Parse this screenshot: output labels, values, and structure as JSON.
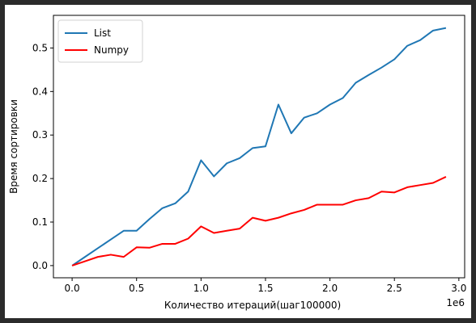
{
  "chart_data": {
    "type": "line",
    "xlabel": "Количество итераций(шаг100000)",
    "ylabel": "Время сортировки",
    "x_offset_text": "1e6",
    "xlim": [
      -0.145,
      3.045
    ],
    "ylim": [
      -0.028,
      0.575
    ],
    "xticks": [
      0.0,
      0.5,
      1.0,
      1.5,
      2.0,
      2.5,
      3.0
    ],
    "xtick_labels": [
      "0.0",
      "0.5",
      "1.0",
      "1.5",
      "2.0",
      "2.5",
      "3.0"
    ],
    "yticks": [
      0.0,
      0.1,
      0.2,
      0.3,
      0.4,
      0.5
    ],
    "ytick_labels": [
      "0.0",
      "0.1",
      "0.2",
      "0.3",
      "0.4",
      "0.5"
    ],
    "grid": false,
    "legend_position": "top-left",
    "x": [
      0.0,
      0.1,
      0.2,
      0.3,
      0.4,
      0.5,
      0.6,
      0.7,
      0.8,
      0.9,
      1.0,
      1.1,
      1.2,
      1.3,
      1.4,
      1.5,
      1.6,
      1.7,
      1.8,
      1.9,
      2.0,
      2.1,
      2.2,
      2.3,
      2.4,
      2.5,
      2.6,
      2.7,
      2.8,
      2.9
    ],
    "series": [
      {
        "name": "List",
        "color": "#1f77b4",
        "values": [
          0.0,
          0.02,
          0.04,
          0.06,
          0.08,
          0.08,
          0.107,
          0.132,
          0.143,
          0.17,
          0.242,
          0.205,
          0.235,
          0.247,
          0.27,
          0.274,
          0.37,
          0.304,
          0.34,
          0.35,
          0.37,
          0.385,
          0.42,
          0.438,
          0.455,
          0.474,
          0.505,
          0.518,
          0.54,
          0.546
        ]
      },
      {
        "name": "Numpy",
        "color": "#ff0000",
        "values": [
          0.0,
          0.01,
          0.02,
          0.025,
          0.02,
          0.042,
          0.041,
          0.05,
          0.05,
          0.062,
          0.09,
          0.075,
          0.08,
          0.085,
          0.11,
          0.103,
          0.11,
          0.12,
          0.128,
          0.14,
          0.14,
          0.14,
          0.15,
          0.155,
          0.17,
          0.168,
          0.18,
          0.185,
          0.19,
          0.204
        ]
      }
    ]
  }
}
